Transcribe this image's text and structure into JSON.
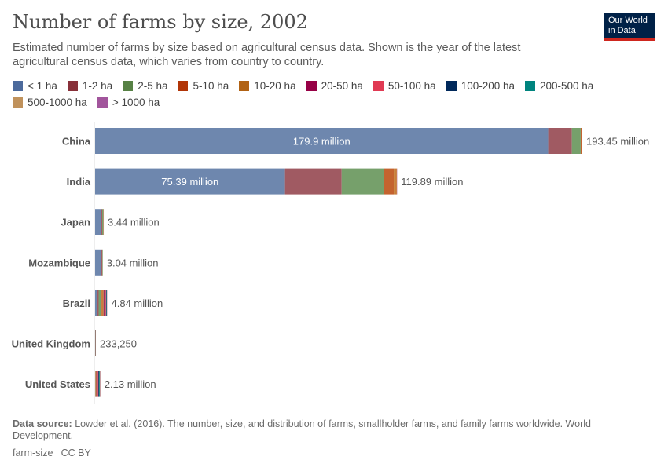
{
  "header": {
    "title": "Number of farms by size, 2002",
    "subtitle": "Estimated number of farms by size based on agricultural census data. Shown is the year of the latest agricultural census data, which varies from country to country.",
    "logo": "Our World in Data"
  },
  "chart_data": {
    "type": "bar",
    "orientation": "horizontal",
    "stacked": true,
    "title": "Number of farms by size, 2002",
    "legend_placement": "top",
    "series_names": [
      "< 1 ha",
      "1-2 ha",
      "2-5 ha",
      "5-10 ha",
      "10-20 ha",
      "20-50 ha",
      "50-100 ha",
      "100-200 ha",
      "200-500 ha",
      "500-1000 ha",
      "> 1000 ha"
    ],
    "colors": [
      "#4c6a9c",
      "#883039",
      "#578145",
      "#b13507",
      "#b16214",
      "#970046",
      "#e03a53",
      "#00295b",
      "#00847e",
      "#c0925c",
      "#a2559c"
    ],
    "bar_colors": [
      "#6e87ae",
      "#a05a62",
      "#76a06b",
      "#c4632f",
      "#c87f3a",
      "#a0305e",
      "#e05a6a",
      "#2c4472",
      "#2a8a82",
      "#c99e70",
      "#a76aa3"
    ],
    "categories": [
      "China",
      "India",
      "Japan",
      "Mozambique",
      "Brazil",
      "United Kingdom",
      "United States"
    ],
    "totals_labels": [
      "193.45 million",
      "119.89 million",
      "3.44 million",
      "3.04 million",
      "4.84 million",
      "233,250",
      "2.13 million"
    ],
    "segment_labels": [
      "179.9 million",
      "75.39 million",
      "",
      "",
      "",
      "",
      ""
    ],
    "values_million": [
      [
        179.9,
        9.4,
        3.5,
        0.4,
        0.15,
        0.07,
        0.02,
        0.005,
        0.003,
        0.001,
        0.001
      ],
      [
        75.39,
        22.5,
        16.8,
        3.9,
        1.2,
        0.1,
        0,
        0,
        0,
        0,
        0
      ],
      [
        2.2,
        0.6,
        0.45,
        0.12,
        0.04,
        0.02,
        0.005,
        0.003,
        0.002,
        0,
        0
      ],
      [
        2.3,
        0.5,
        0.2,
        0.03,
        0.005,
        0.003,
        0.001,
        0.0005,
        0.0003,
        0.0001,
        0.0001
      ],
      [
        0.9,
        0.5,
        0.8,
        0.55,
        0.6,
        0.63,
        0.35,
        0.2,
        0.15,
        0.08,
        0.08
      ],
      [
        0.02,
        0.01,
        0.02,
        0.02,
        0.025,
        0.05,
        0.04,
        0.03,
        0.015,
        0.002,
        0.001
      ],
      [
        0.01,
        0.02,
        0.1,
        0.15,
        0.2,
        0.4,
        0.35,
        0.33,
        0.3,
        0.15,
        0.12
      ]
    ],
    "xlim": [
      0,
      193.45
    ]
  },
  "footer": {
    "source_label": "Data source:",
    "source_text": " Lowder et al. (2016). The number, size, and distribution of farms, smallholder farms, and family farms worldwide. World Development.",
    "slug": "farm-size | CC BY"
  }
}
